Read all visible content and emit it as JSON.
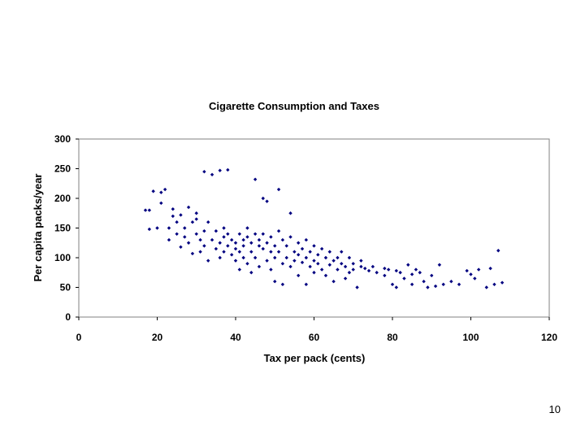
{
  "page": {
    "number": "10"
  },
  "chart_data": {
    "type": "scatter",
    "title": "Cigarette Consumption and Taxes",
    "xlabel": "Tax per pack (cents)",
    "ylabel": "Per capita packs/year",
    "xlim": [
      0,
      120
    ],
    "ylim": [
      0,
      300
    ],
    "xticks": [
      0,
      20,
      40,
      60,
      80,
      100,
      120
    ],
    "yticks": [
      0,
      50,
      100,
      150,
      200,
      250,
      300
    ],
    "grid": false,
    "legend": "none",
    "marker": "diamond",
    "marker_color": "#000080",
    "series": [
      {
        "points": [
          [
            17,
            180
          ],
          [
            18,
            148
          ],
          [
            18,
            180
          ],
          [
            19,
            212
          ],
          [
            20,
            150
          ],
          [
            21,
            210
          ],
          [
            21,
            192
          ],
          [
            22,
            215
          ],
          [
            23,
            130
          ],
          [
            23,
            150
          ],
          [
            24,
            170
          ],
          [
            24,
            182
          ],
          [
            25,
            140
          ],
          [
            25,
            160
          ],
          [
            26,
            118
          ],
          [
            26,
            172
          ],
          [
            27,
            135
          ],
          [
            27,
            150
          ],
          [
            28,
            185
          ],
          [
            28,
            125
          ],
          [
            29,
            107
          ],
          [
            29,
            160
          ],
          [
            30,
            175
          ],
          [
            30,
            140
          ],
          [
            30,
            165
          ],
          [
            31,
            130
          ],
          [
            31,
            110
          ],
          [
            32,
            245
          ],
          [
            32,
            145
          ],
          [
            32,
            120
          ],
          [
            33,
            160
          ],
          [
            33,
            95
          ],
          [
            34,
            240
          ],
          [
            34,
            130
          ],
          [
            35,
            145
          ],
          [
            35,
            115
          ],
          [
            36,
            247
          ],
          [
            36,
            125
          ],
          [
            36,
            100
          ],
          [
            37,
            135
          ],
          [
            37,
            110
          ],
          [
            37,
            150
          ],
          [
            38,
            248
          ],
          [
            38,
            120
          ],
          [
            38,
            140
          ],
          [
            39,
            105
          ],
          [
            39,
            130
          ],
          [
            40,
            125
          ],
          [
            40,
            115
          ],
          [
            40,
            95
          ],
          [
            41,
            140
          ],
          [
            41,
            110
          ],
          [
            41,
            80
          ],
          [
            42,
            130
          ],
          [
            42,
            120
          ],
          [
            42,
            100
          ],
          [
            43,
            150
          ],
          [
            43,
            135
          ],
          [
            43,
            90
          ],
          [
            44,
            125
          ],
          [
            44,
            110
          ],
          [
            44,
            75
          ],
          [
            45,
            232
          ],
          [
            45,
            140
          ],
          [
            45,
            100
          ],
          [
            46,
            120
          ],
          [
            46,
            130
          ],
          [
            46,
            85
          ],
          [
            47,
            200
          ],
          [
            47,
            115
          ],
          [
            47,
            140
          ],
          [
            48,
            195
          ],
          [
            48,
            125
          ],
          [
            48,
            95
          ],
          [
            49,
            110
          ],
          [
            49,
            135
          ],
          [
            49,
            80
          ],
          [
            50,
            120
          ],
          [
            50,
            100
          ],
          [
            50,
            60
          ],
          [
            51,
            215
          ],
          [
            51,
            145
          ],
          [
            51,
            110
          ],
          [
            52,
            130
          ],
          [
            52,
            90
          ],
          [
            52,
            55
          ],
          [
            53,
            120
          ],
          [
            53,
            100
          ],
          [
            54,
            175
          ],
          [
            54,
            135
          ],
          [
            54,
            85
          ],
          [
            55,
            110
          ],
          [
            55,
            95
          ],
          [
            56,
            125
          ],
          [
            56,
            105
          ],
          [
            56,
            70
          ],
          [
            57,
            115
          ],
          [
            57,
            92
          ],
          [
            58,
            130
          ],
          [
            58,
            100
          ],
          [
            58,
            55
          ],
          [
            59,
            110
          ],
          [
            59,
            85
          ],
          [
            60,
            120
          ],
          [
            60,
            95
          ],
          [
            60,
            75
          ],
          [
            61,
            105
          ],
          [
            61,
            90
          ],
          [
            62,
            115
          ],
          [
            62,
            80
          ],
          [
            63,
            100
          ],
          [
            63,
            70
          ],
          [
            64,
            110
          ],
          [
            64,
            88
          ],
          [
            65,
            95
          ],
          [
            65,
            60
          ],
          [
            66,
            100
          ],
          [
            66,
            80
          ],
          [
            67,
            110
          ],
          [
            67,
            90
          ],
          [
            68,
            85
          ],
          [
            68,
            65
          ],
          [
            69,
            100
          ],
          [
            69,
            75
          ],
          [
            70,
            90
          ],
          [
            70,
            80
          ],
          [
            71,
            50
          ],
          [
            72,
            95
          ],
          [
            72,
            85
          ],
          [
            73,
            82
          ],
          [
            74,
            78
          ],
          [
            75,
            85
          ],
          [
            76,
            75
          ],
          [
            78,
            70
          ],
          [
            78,
            82
          ],
          [
            79,
            80
          ],
          [
            80,
            55
          ],
          [
            81,
            50
          ],
          [
            81,
            78
          ],
          [
            82,
            75
          ],
          [
            83,
            65
          ],
          [
            84,
            88
          ],
          [
            85,
            72
          ],
          [
            85,
            55
          ],
          [
            86,
            80
          ],
          [
            87,
            75
          ],
          [
            88,
            60
          ],
          [
            89,
            50
          ],
          [
            90,
            70
          ],
          [
            91,
            52
          ],
          [
            92,
            88
          ],
          [
            93,
            55
          ],
          [
            95,
            60
          ],
          [
            97,
            55
          ],
          [
            99,
            78
          ],
          [
            100,
            72
          ],
          [
            101,
            65
          ],
          [
            102,
            80
          ],
          [
            104,
            50
          ],
          [
            105,
            82
          ],
          [
            106,
            55
          ],
          [
            107,
            112
          ],
          [
            108,
            58
          ]
        ]
      }
    ]
  }
}
